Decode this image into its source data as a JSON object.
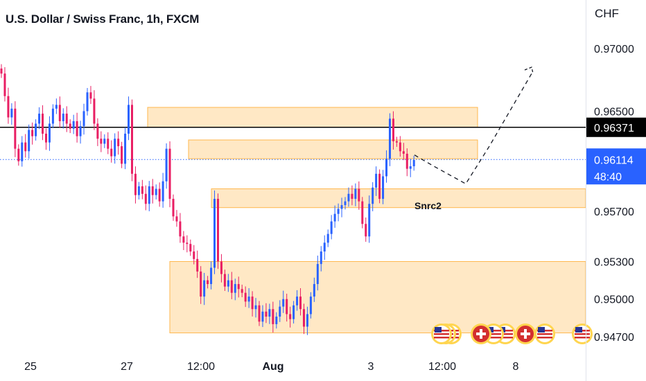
{
  "header": {
    "title": "U.S. Dollar / Swiss Franc, 1h, FXCM"
  },
  "axis": {
    "currency": "CHF"
  },
  "colors": {
    "up": "#2962ff",
    "down": "#e91e63",
    "zone_fill": "#ffe0b2",
    "zone_stroke": "#ffb74d",
    "current_price_bg": "#2962ff",
    "level_bg": "#000000"
  },
  "chart_data": {
    "type": "candlestick",
    "symbol": "U.S. Dollar / Swiss Franc",
    "interval": "1h",
    "source": "FXCM",
    "y_unit": "CHF",
    "ylim": [
      0.9455,
      0.973
    ],
    "y_ticks": [
      "0.97000",
      "0.96500",
      "0.95700",
      "0.95300",
      "0.95000",
      "0.94700"
    ],
    "x_ticks": [
      "25",
      "27",
      "12:00",
      "Aug",
      "3",
      "12:00",
      "8"
    ],
    "horizontal_level": {
      "value": 0.96371,
      "label": "0.96371"
    },
    "current_price": {
      "value": 0.96114,
      "label": "0.96114",
      "countdown": "48:40"
    },
    "zones": [
      {
        "low": 0.9637,
        "high": 0.9653
      },
      {
        "low": 0.9612,
        "high": 0.9627
      },
      {
        "low": 0.9573,
        "high": 0.9588
      },
      {
        "low": 0.9473,
        "high": 0.953
      }
    ],
    "annotation": "Snrc2",
    "projection": [
      {
        "x": "09:00 Aug 4",
        "y": 0.9615
      },
      {
        "x": "12:00 Aug 4",
        "y": 0.9606
      },
      {
        "x": "16:00 Aug 4",
        "y": 0.9592
      },
      {
        "x": "20:00 Aug 4",
        "y": 0.9622
      },
      {
        "x": "08:00 Aug 5",
        "y": 0.968
      }
    ],
    "series": [
      {
        "close": [
          0.968,
          0.9662,
          0.9645,
          0.9652,
          0.962,
          0.961,
          0.9625,
          0.9618,
          0.9635,
          0.963,
          0.964,
          0.9648,
          0.9632,
          0.9625,
          0.964,
          0.9652,
          0.9655,
          0.9642,
          0.9648,
          0.964,
          0.9636,
          0.9642,
          0.963,
          0.9638,
          0.965,
          0.9665,
          0.966,
          0.964,
          0.9628,
          0.9624,
          0.9628,
          0.962,
          0.9614,
          0.9628,
          0.9622,
          0.9608,
          0.9632,
          0.9655,
          0.96,
          0.9583,
          0.959,
          0.9584,
          0.9576,
          0.959,
          0.9583,
          0.9588,
          0.9578,
          0.9594,
          0.962,
          0.958,
          0.9566,
          0.9562,
          0.955,
          0.9545,
          0.9544,
          0.9538,
          0.9532,
          0.9522,
          0.9502,
          0.9515,
          0.9512,
          0.9525,
          0.958,
          0.953,
          0.952,
          0.951,
          0.9515,
          0.9505,
          0.9512,
          0.9508,
          0.9505,
          0.9498,
          0.9502,
          0.9492,
          0.9495,
          0.9482,
          0.949,
          0.9486,
          0.9492,
          0.948,
          0.9486,
          0.9494,
          0.95,
          0.9488,
          0.9484,
          0.9495,
          0.9502,
          0.9492,
          0.9478,
          0.9488,
          0.9502,
          0.9512,
          0.9528,
          0.9538,
          0.9545,
          0.9552,
          0.9562,
          0.9568,
          0.9572,
          0.9575,
          0.9578,
          0.9584,
          0.958,
          0.9588,
          0.9578,
          0.956,
          0.955,
          0.9576,
          0.9589,
          0.96,
          0.958,
          0.9598,
          0.9612,
          0.9644,
          0.9626,
          0.9625,
          0.9618,
          0.9616,
          0.9604,
          0.9606,
          0.9611
        ]
      }
    ]
  }
}
